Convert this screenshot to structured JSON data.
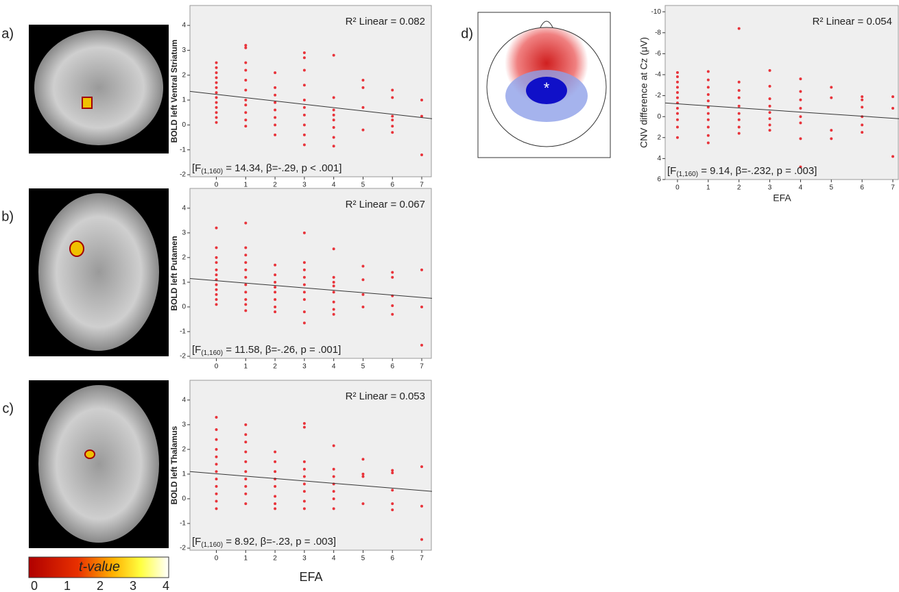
{
  "chart_data": [
    {
      "type": "scatter",
      "panel": "a)",
      "ylabel": "BOLD left Ventral Striatum",
      "r2": "R² Linear = 0.082",
      "stats": {
        "prefix": "[F",
        "sub": "(1,160)",
        "rest": " = 14.34, β=-.29, p < .001]"
      },
      "color": "#e8333a",
      "xlim": [
        -0.9,
        7.35
      ],
      "ylim": [
        -2,
        4.8
      ],
      "xticks": [
        0,
        1,
        2,
        3,
        4,
        5,
        6,
        7
      ],
      "yticks": [
        -2,
        -1,
        0,
        1,
        2,
        3,
        4
      ],
      "fit": {
        "x": [
          -0.9,
          7.35
        ],
        "y": [
          1.35,
          0.25
        ]
      },
      "x": [
        0,
        0,
        0,
        0,
        0,
        0,
        0,
        0,
        0,
        0,
        0,
        0,
        0,
        1,
        1,
        1,
        1,
        1,
        1,
        1,
        1,
        1,
        1,
        1,
        2,
        2,
        2,
        2,
        2,
        2,
        2,
        2,
        3,
        3,
        3,
        3,
        3,
        3,
        3,
        3,
        3,
        3,
        4,
        4,
        4,
        4,
        4,
        4,
        4,
        4,
        5,
        5,
        5,
        5,
        6,
        6,
        6,
        6,
        6,
        6,
        7,
        7,
        7
      ],
      "y": [
        2.5,
        2.3,
        2.1,
        1.9,
        1.7,
        1.5,
        1.3,
        1.1,
        0.9,
        0.7,
        0.5,
        0.3,
        0.1,
        3.2,
        3.1,
        2.5,
        2.2,
        1.8,
        1.4,
        1.0,
        0.8,
        0.5,
        0.2,
        -0.05,
        2.1,
        1.5,
        1.2,
        0.9,
        0.6,
        0.3,
        0.0,
        -0.4,
        2.9,
        2.7,
        2.2,
        1.6,
        1.0,
        0.7,
        0.4,
        0.0,
        -0.4,
        -0.8,
        2.8,
        1.1,
        0.6,
        0.4,
        0.2,
        -0.1,
        -0.5,
        -0.85,
        1.8,
        1.5,
        0.7,
        -0.2,
        1.4,
        1.1,
        0.35,
        0.2,
        -0.05,
        -0.3,
        1.0,
        0.35,
        -1.2
      ]
    },
    {
      "type": "scatter",
      "panel": "b)",
      "ylabel": "BOLD left Putamen",
      "r2": "R² Linear = 0.067",
      "stats": {
        "prefix": "[F",
        "sub": "(1,160)",
        "rest": " = 11.58, β=-.26, p = .001]"
      },
      "color": "#e8333a",
      "xlim": [
        -0.9,
        7.35
      ],
      "ylim": [
        -2,
        4.8
      ],
      "xticks": [
        0,
        1,
        2,
        3,
        4,
        5,
        6,
        7
      ],
      "yticks": [
        -2,
        -1,
        0,
        1,
        2,
        3,
        4
      ],
      "fit": {
        "x": [
          -0.9,
          7.35
        ],
        "y": [
          1.15,
          0.35
        ]
      },
      "x": [
        0,
        0,
        0,
        0,
        0,
        0,
        0,
        0,
        0,
        0,
        0,
        0,
        1,
        1,
        1,
        1,
        1,
        1,
        1,
        1,
        1,
        1,
        1,
        2,
        2,
        2,
        2,
        2,
        2,
        2,
        2,
        3,
        3,
        3,
        3,
        3,
        3,
        3,
        3,
        3,
        4,
        4,
        4,
        4,
        4,
        4,
        4,
        4,
        5,
        5,
        5,
        5,
        6,
        6,
        6,
        6,
        6,
        7,
        7,
        7
      ],
      "y": [
        3.2,
        2.4,
        2.0,
        1.8,
        1.5,
        1.3,
        1.1,
        0.9,
        0.7,
        0.5,
        0.3,
        0.1,
        3.4,
        2.4,
        2.1,
        1.8,
        1.5,
        1.2,
        0.9,
        0.6,
        0.3,
        0.1,
        -0.15,
        1.7,
        1.3,
        1.0,
        0.8,
        0.6,
        0.3,
        0.0,
        -0.2,
        3.0,
        1.8,
        1.5,
        1.2,
        0.9,
        0.6,
        0.3,
        -0.2,
        -0.65,
        2.35,
        1.2,
        1.0,
        0.85,
        0.6,
        0.2,
        -0.1,
        -0.3,
        1.65,
        1.1,
        0.5,
        0.0,
        1.4,
        1.2,
        0.45,
        0.05,
        -0.3,
        1.5,
        0.0,
        -1.55
      ]
    },
    {
      "type": "scatter",
      "panel": "c)",
      "ylabel": "BOLD left Thalamus",
      "r2": "R² Linear = 0.053",
      "xlabel": "EFA",
      "stats": {
        "prefix": "[F",
        "sub": "(1,160)",
        "rest": " = 8.92, β=-.23, p = .003]"
      },
      "color": "#e8333a",
      "xlim": [
        -0.9,
        7.35
      ],
      "ylim": [
        -2,
        4.8
      ],
      "xticks": [
        0,
        1,
        2,
        3,
        4,
        5,
        6,
        7
      ],
      "yticks": [
        -2,
        -1,
        0,
        1,
        2,
        3,
        4
      ],
      "fit": {
        "x": [
          -0.9,
          7.35
        ],
        "y": [
          1.1,
          0.3
        ]
      },
      "x": [
        0,
        0,
        0,
        0,
        0,
        0,
        0,
        0,
        0,
        0,
        0,
        0,
        1,
        1,
        1,
        1,
        1,
        1,
        1,
        1,
        1,
        1,
        2,
        2,
        2,
        2,
        2,
        2,
        2,
        2,
        3,
        3,
        3,
        3,
        3,
        3,
        3,
        3,
        3,
        4,
        4,
        4,
        4,
        4,
        4,
        4,
        5,
        5,
        5,
        5,
        6,
        6,
        6,
        6,
        6,
        7,
        7,
        7
      ],
      "y": [
        3.3,
        2.8,
        2.4,
        2.0,
        1.7,
        1.4,
        1.1,
        0.8,
        0.5,
        0.2,
        -0.1,
        -0.4,
        3.0,
        2.6,
        2.3,
        1.9,
        1.5,
        1.1,
        0.8,
        0.5,
        0.2,
        -0.2,
        1.9,
        1.5,
        1.1,
        0.8,
        0.5,
        0.1,
        -0.2,
        -0.4,
        3.05,
        2.9,
        1.5,
        1.2,
        0.9,
        0.6,
        0.3,
        -0.1,
        -0.4,
        2.15,
        1.2,
        0.9,
        0.6,
        0.3,
        0.0,
        -0.4,
        1.6,
        1.0,
        0.9,
        -0.2,
        1.15,
        1.05,
        0.35,
        -0.2,
        -0.45,
        1.3,
        -0.3,
        -1.65
      ]
    },
    {
      "type": "scatter",
      "panel": "d)",
      "ylabel": "CNV difference at Cz (μV)",
      "r2": "R² Linear = 0.054",
      "xlabel": "EFA",
      "stats": {
        "prefix": "[F",
        "sub": "(1,160)",
        "rest": " = 9.14, β=-.232, p = .003]"
      },
      "color": "#e8333a",
      "xlim": [
        -0.4,
        7.2
      ],
      "ylim": [
        6,
        -10.6
      ],
      "xticks": [
        0,
        1,
        2,
        3,
        4,
        5,
        6,
        7
      ],
      "yticks": [
        -10,
        -8,
        -6,
        -4,
        -2,
        0,
        2,
        4,
        6
      ],
      "fit": {
        "x": [
          -0.4,
          7.2
        ],
        "y": [
          -1.3,
          0.2
        ]
      },
      "x": [
        0,
        0,
        0,
        0,
        0,
        0,
        0,
        0,
        0,
        0,
        0,
        0,
        1,
        1,
        1,
        1,
        1,
        1,
        1,
        1,
        1,
        1,
        1,
        2,
        2,
        2,
        2,
        2,
        2,
        2,
        2,
        2,
        3,
        3,
        3,
        3,
        3,
        3,
        3,
        3,
        4,
        4,
        4,
        4,
        4,
        4,
        4,
        4,
        5,
        5,
        5,
        5,
        6,
        6,
        6,
        6,
        6,
        6,
        7,
        7,
        7
      ],
      "y": [
        -4.2,
        -3.8,
        -3.3,
        -2.8,
        -2.3,
        -1.8,
        -1.3,
        -0.8,
        -0.3,
        0.3,
        1.0,
        2.0,
        -4.3,
        -3.5,
        -2.8,
        -2.1,
        -1.5,
        -0.9,
        -0.3,
        0.3,
        1.0,
        1.8,
        2.5,
        -8.4,
        -3.3,
        -2.5,
        -1.8,
        -1.0,
        -0.3,
        0.3,
        1.0,
        1.6,
        -4.4,
        -2.9,
        -1.7,
        -1.0,
        -0.4,
        0.2,
        0.8,
        1.3,
        -3.6,
        -2.4,
        -1.6,
        -0.8,
        0.0,
        0.6,
        2.1,
        4.8,
        -2.8,
        -1.8,
        1.3,
        2.1,
        -1.9,
        -1.6,
        -0.9,
        0.0,
        0.8,
        1.5,
        -1.9,
        -0.8,
        3.8
      ]
    }
  ],
  "colorbar": {
    "label": "t-value",
    "ticks": [
      0,
      1,
      2,
      3,
      4
    ]
  },
  "topomap": {
    "marker": "*"
  }
}
